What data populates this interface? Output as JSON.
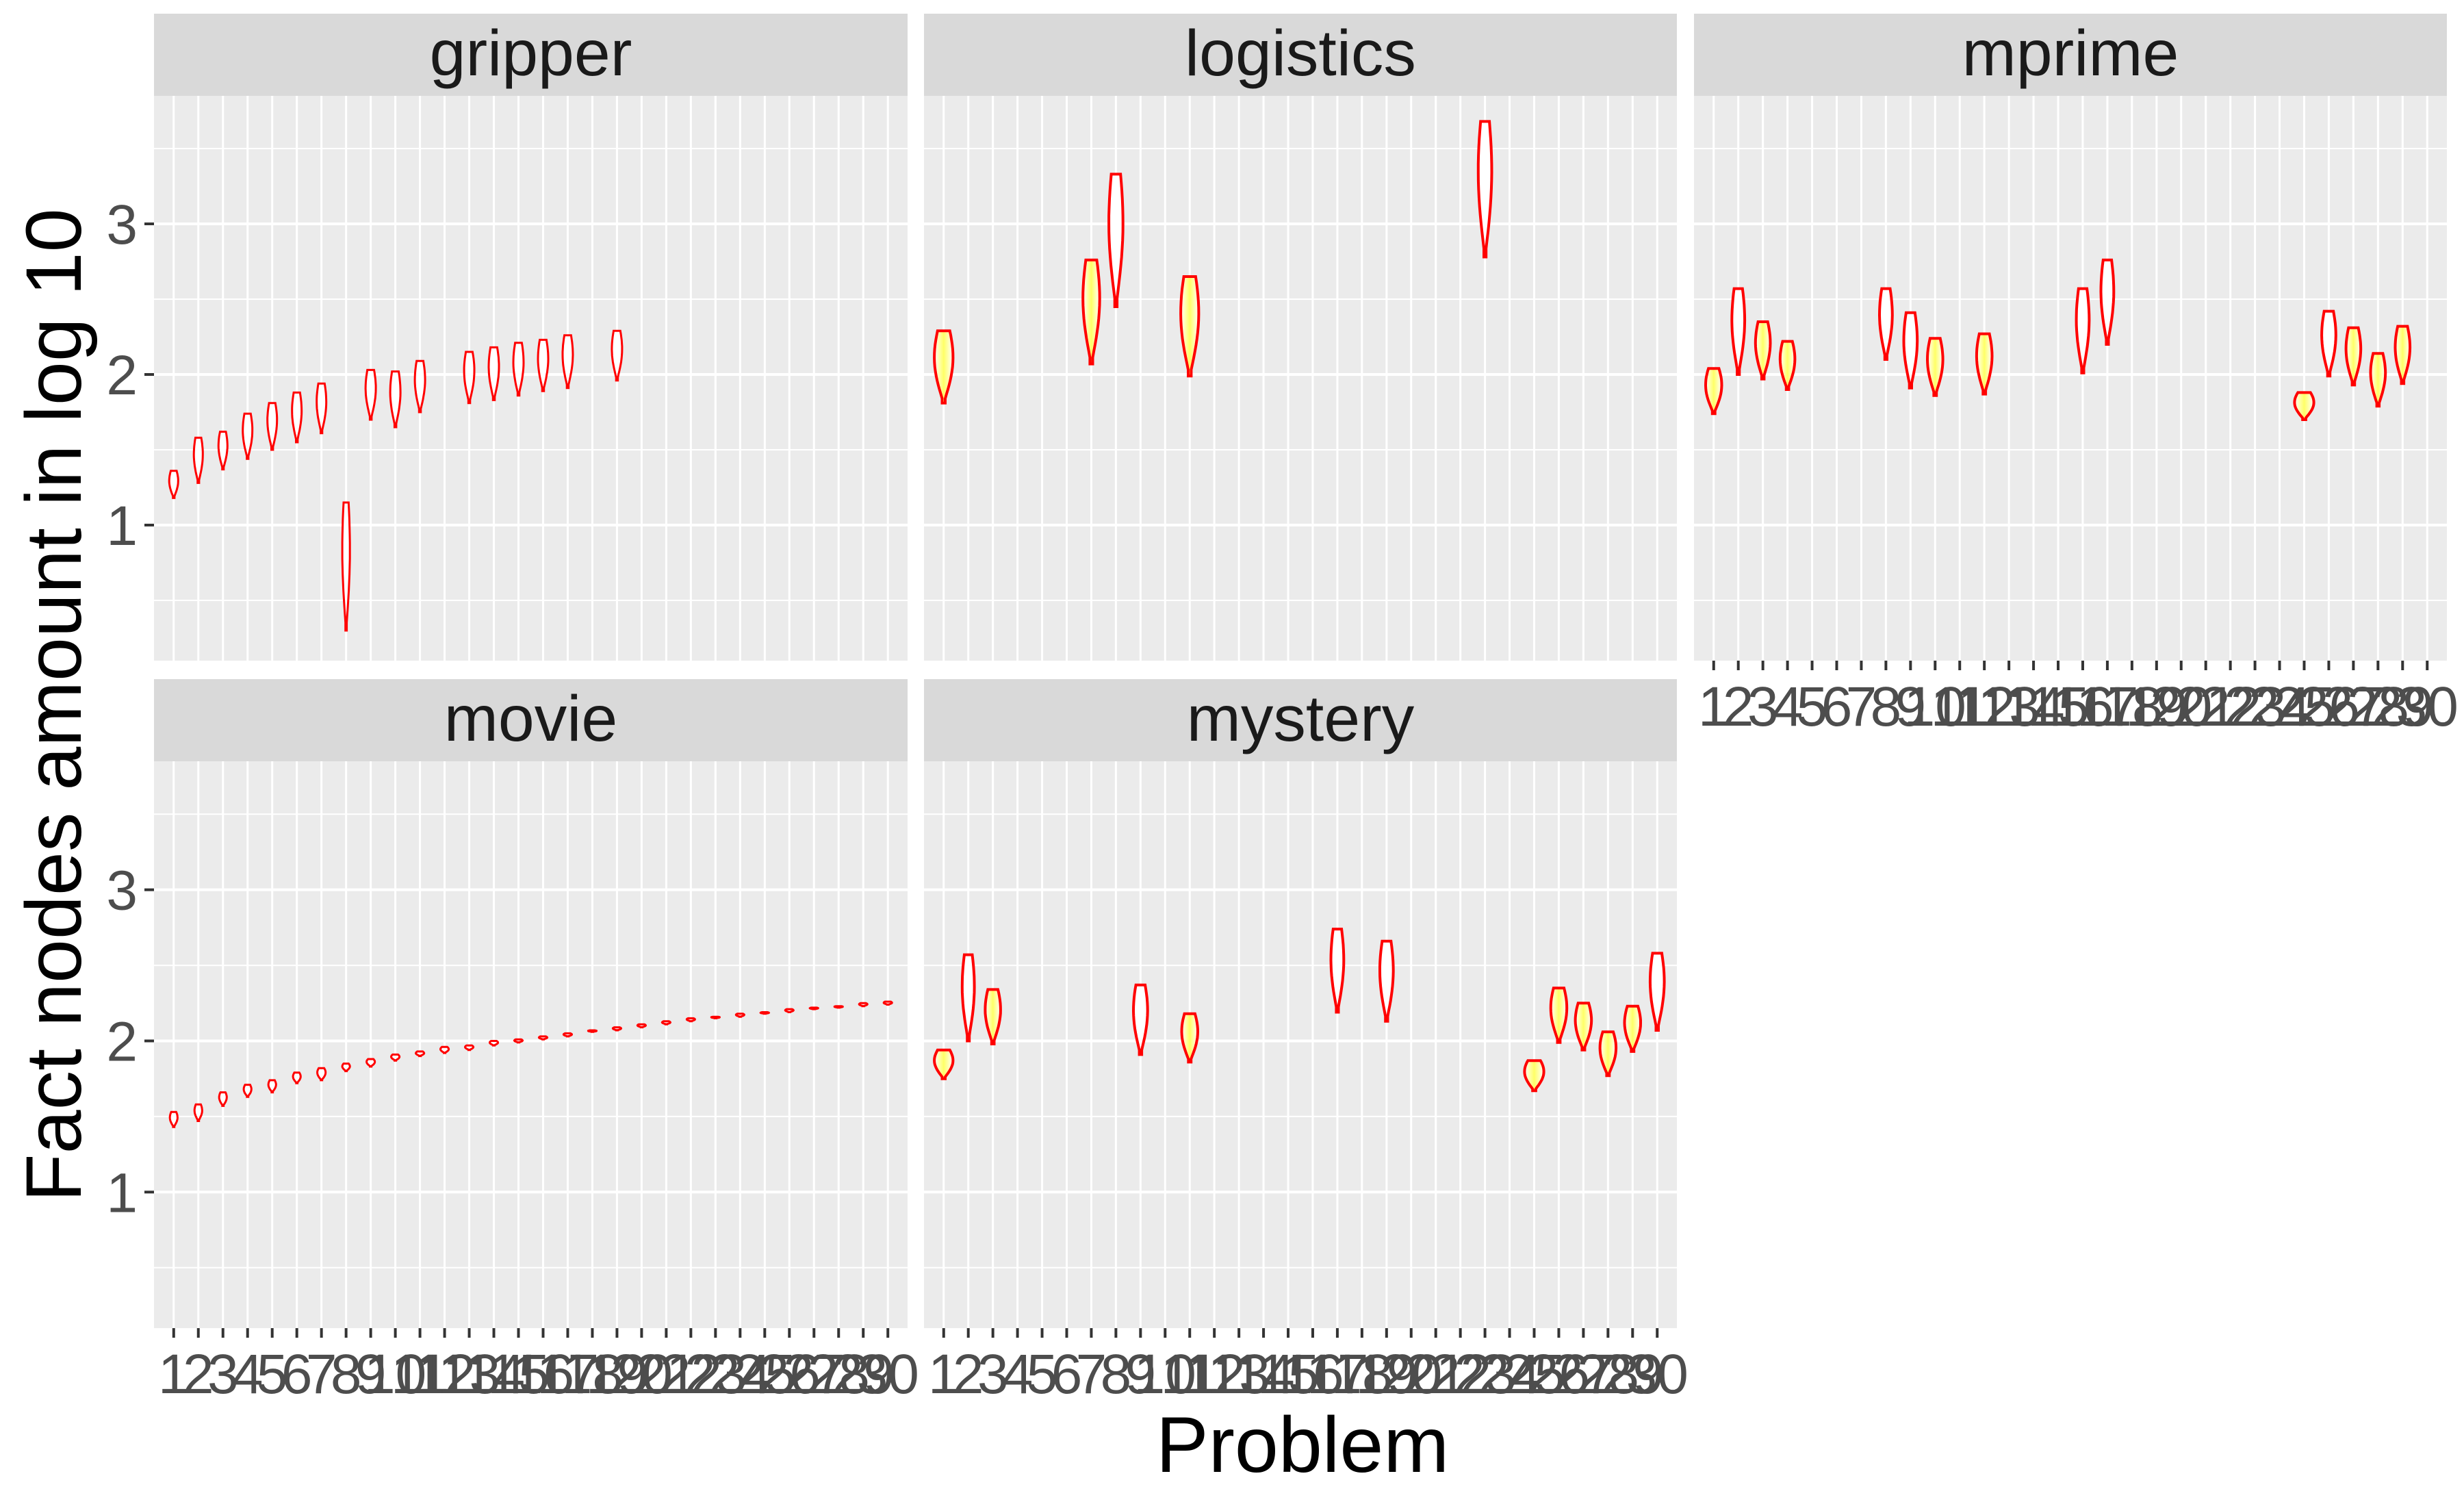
{
  "chart_data": {
    "type": "violin",
    "facet_order": [
      "gripper",
      "logistics",
      "mprime",
      "movie",
      "mystery"
    ],
    "xlabel": "Problem",
    "ylabel": "Fact nodes amount in log 10",
    "x_categories": [
      "1",
      "2",
      "3",
      "4",
      "5",
      "6",
      "7",
      "8",
      "9",
      "10",
      "11",
      "12",
      "13",
      "14",
      "15",
      "16",
      "17",
      "18",
      "19",
      "20",
      "21",
      "22",
      "23",
      "24",
      "25",
      "26",
      "27",
      "28",
      "29",
      "30"
    ],
    "y_ticks": [
      1,
      2,
      3
    ],
    "y_range": [
      0.1,
      3.85
    ],
    "grid": true,
    "colors": {
      "outline": "#ff0000",
      "fill_high": "#ffff66",
      "fill_low": "#ffffff",
      "panel_bg": "#ebebeb",
      "strip_bg": "#d9d9d9",
      "grid": "#ffffff"
    },
    "facets": [
      {
        "name": "gripper",
        "violins": [
          {
            "x": 1,
            "min": 1.18,
            "max": 1.36,
            "density": 0.15
          },
          {
            "x": 2,
            "min": 1.28,
            "max": 1.58,
            "density": 0.15
          },
          {
            "x": 3,
            "min": 1.37,
            "max": 1.62,
            "density": 0.15
          },
          {
            "x": 4,
            "min": 1.44,
            "max": 1.74,
            "density": 0.2
          },
          {
            "x": 5,
            "min": 1.5,
            "max": 1.81,
            "density": 0.2
          },
          {
            "x": 6,
            "min": 1.55,
            "max": 1.88,
            "density": 0.2
          },
          {
            "x": 7,
            "min": 1.61,
            "max": 1.94,
            "density": 0.2
          },
          {
            "x": 8,
            "min": 0.3,
            "max": 1.15,
            "density": 0.05
          },
          {
            "x": 9,
            "min": 1.7,
            "max": 2.03,
            "density": 0.25
          },
          {
            "x": 10,
            "min": 1.65,
            "max": 2.02,
            "density": 0.25
          },
          {
            "x": 11,
            "min": 1.75,
            "max": 2.09,
            "density": 0.25
          },
          {
            "x": 13,
            "min": 1.81,
            "max": 2.15,
            "density": 0.25
          },
          {
            "x": 14,
            "min": 1.83,
            "max": 2.18,
            "density": 0.25
          },
          {
            "x": 15,
            "min": 1.86,
            "max": 2.21,
            "density": 0.25
          },
          {
            "x": 16,
            "min": 1.89,
            "max": 2.23,
            "density": 0.25
          },
          {
            "x": 17,
            "min": 1.91,
            "max": 2.26,
            "density": 0.25
          },
          {
            "x": 19,
            "min": 1.96,
            "max": 2.29,
            "density": 0.25
          }
        ]
      },
      {
        "name": "logistics",
        "violins": [
          {
            "x": 1,
            "min": 1.81,
            "max": 2.29,
            "density": 0.9
          },
          {
            "x": 7,
            "min": 2.07,
            "max": 2.76,
            "density": 0.75
          },
          {
            "x": 8,
            "min": 2.45,
            "max": 3.33,
            "density": 0.55
          },
          {
            "x": 11,
            "min": 1.99,
            "max": 2.65,
            "density": 0.85
          },
          {
            "x": 23,
            "min": 2.78,
            "max": 3.68,
            "density": 0.5
          }
        ]
      },
      {
        "name": "mprime",
        "violins": [
          {
            "x": 1,
            "min": 1.74,
            "max": 2.04,
            "density": 0.7
          },
          {
            "x": 2,
            "min": 2.0,
            "max": 2.57,
            "density": 0.45
          },
          {
            "x": 3,
            "min": 1.97,
            "max": 2.35,
            "density": 0.6
          },
          {
            "x": 4,
            "min": 1.9,
            "max": 2.22,
            "density": 0.6
          },
          {
            "x": 8,
            "min": 2.1,
            "max": 2.57,
            "density": 0.45
          },
          {
            "x": 9,
            "min": 1.91,
            "max": 2.41,
            "density": 0.5
          },
          {
            "x": 10,
            "min": 1.86,
            "max": 2.24,
            "density": 0.65
          },
          {
            "x": 12,
            "min": 1.87,
            "max": 2.27,
            "density": 0.65
          },
          {
            "x": 16,
            "min": 2.01,
            "max": 2.57,
            "density": 0.45
          },
          {
            "x": 17,
            "min": 2.2,
            "max": 2.76,
            "density": 0.45
          },
          {
            "x": 25,
            "min": 1.7,
            "max": 1.88,
            "density": 0.95
          },
          {
            "x": 26,
            "min": 1.99,
            "max": 2.42,
            "density": 0.55
          },
          {
            "x": 27,
            "min": 1.93,
            "max": 2.31,
            "density": 0.6
          },
          {
            "x": 28,
            "min": 1.79,
            "max": 2.14,
            "density": 0.6
          },
          {
            "x": 29,
            "min": 1.94,
            "max": 2.32,
            "density": 0.6
          }
        ]
      },
      {
        "name": "movie",
        "violins": [
          {
            "x": 1,
            "min": 1.43,
            "max": 1.53,
            "density": 0.05
          },
          {
            "x": 2,
            "min": 1.47,
            "max": 1.58,
            "density": 0.05
          },
          {
            "x": 3,
            "min": 1.57,
            "max": 1.66,
            "density": 0.05
          },
          {
            "x": 4,
            "min": 1.63,
            "max": 1.71,
            "density": 0.05
          },
          {
            "x": 5,
            "min": 1.66,
            "max": 1.74,
            "density": 0.05
          },
          {
            "x": 6,
            "min": 1.72,
            "max": 1.79,
            "density": 0.05
          },
          {
            "x": 7,
            "min": 1.74,
            "max": 1.82,
            "density": 0.1
          },
          {
            "x": 8,
            "min": 1.8,
            "max": 1.85,
            "density": 0.05
          },
          {
            "x": 9,
            "min": 1.83,
            "max": 1.88,
            "density": 0.1
          },
          {
            "x": 10,
            "min": 1.87,
            "max": 1.91,
            "density": 0.1
          },
          {
            "x": 11,
            "min": 1.9,
            "max": 1.93,
            "density": 0.1
          },
          {
            "x": 12,
            "min": 1.92,
            "max": 1.96,
            "density": 0.1
          },
          {
            "x": 13,
            "min": 1.94,
            "max": 1.97,
            "density": 0.1
          },
          {
            "x": 14,
            "min": 1.97,
            "max": 2.0,
            "density": 0.1
          },
          {
            "x": 15,
            "min": 1.99,
            "max": 2.01,
            "density": 0.1
          },
          {
            "x": 16,
            "min": 2.01,
            "max": 2.03,
            "density": 0.1
          },
          {
            "x": 17,
            "min": 2.03,
            "max": 2.05,
            "density": 0.1
          },
          {
            "x": 18,
            "min": 2.06,
            "max": 2.07,
            "density": 0.1
          },
          {
            "x": 19,
            "min": 2.07,
            "max": 2.09,
            "density": 0.1
          },
          {
            "x": 20,
            "min": 2.09,
            "max": 2.11,
            "density": 0.1
          },
          {
            "x": 21,
            "min": 2.11,
            "max": 2.13,
            "density": 0.1
          },
          {
            "x": 22,
            "min": 2.13,
            "max": 2.15,
            "density": 0.1
          },
          {
            "x": 23,
            "min": 2.15,
            "max": 2.16,
            "density": 0.1
          },
          {
            "x": 24,
            "min": 2.16,
            "max": 2.18,
            "density": 0.1
          },
          {
            "x": 25,
            "min": 2.18,
            "max": 2.19,
            "density": 0.1
          },
          {
            "x": 26,
            "min": 2.19,
            "max": 2.21,
            "density": 0.1
          },
          {
            "x": 27,
            "min": 2.21,
            "max": 2.22,
            "density": 0.1
          },
          {
            "x": 28,
            "min": 2.22,
            "max": 2.23,
            "density": 0.1
          },
          {
            "x": 29,
            "min": 2.23,
            "max": 2.25,
            "density": 0.1
          },
          {
            "x": 30,
            "min": 2.24,
            "max": 2.26,
            "density": 0.1
          }
        ]
      },
      {
        "name": "mystery",
        "violins": [
          {
            "x": 1,
            "min": 1.75,
            "max": 1.94,
            "density": 0.9
          },
          {
            "x": 2,
            "min": 2.0,
            "max": 2.57,
            "density": 0.4
          },
          {
            "x": 3,
            "min": 1.98,
            "max": 2.34,
            "density": 0.65
          },
          {
            "x": 9,
            "min": 1.91,
            "max": 2.37,
            "density": 0.55
          },
          {
            "x": 11,
            "min": 1.86,
            "max": 2.18,
            "density": 0.7
          },
          {
            "x": 17,
            "min": 2.19,
            "max": 2.74,
            "density": 0.45
          },
          {
            "x": 19,
            "min": 2.13,
            "max": 2.66,
            "density": 0.5
          },
          {
            "x": 25,
            "min": 1.67,
            "max": 1.87,
            "density": 0.95
          },
          {
            "x": 26,
            "min": 1.99,
            "max": 2.35,
            "density": 0.7
          },
          {
            "x": 27,
            "min": 1.94,
            "max": 2.25,
            "density": 0.7
          },
          {
            "x": 28,
            "min": 1.77,
            "max": 2.06,
            "density": 0.7
          },
          {
            "x": 29,
            "min": 1.93,
            "max": 2.23,
            "density": 0.7
          },
          {
            "x": 30,
            "min": 2.07,
            "max": 2.58,
            "density": 0.55
          }
        ]
      }
    ]
  }
}
